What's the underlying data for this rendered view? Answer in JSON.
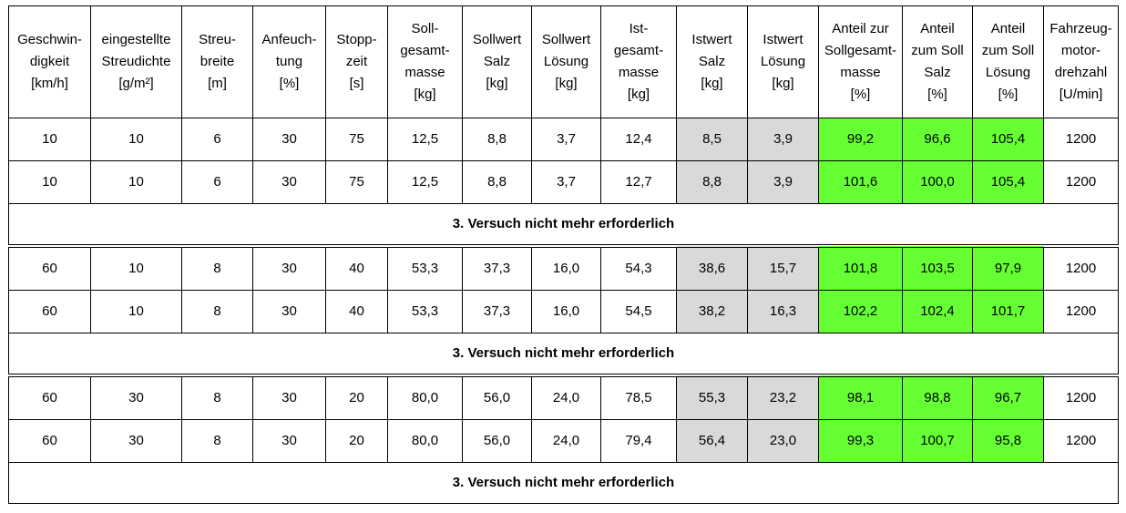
{
  "colors": {
    "istwert_bg": "#d9d9d9",
    "anteil_bg": "#66ff33",
    "grid": "#000000"
  },
  "headers": [
    "Geschwin-\ndigkeit\n[km/h]",
    "eingestellte\nStreudichte\n[g/m²]",
    "Streu-\nbreite\n[m]",
    "Anfeuch-\ntung\n[%]",
    "Stopp-\nzeit\n[s]",
    "Soll-\ngesamt-\nmasse\n[kg]",
    "Sollwert\nSalz\n[kg]",
    "Sollwert\nLösung\n[kg]",
    "Ist-\ngesamt-\nmasse\n[kg]",
    "Istwert\nSalz\n[kg]",
    "Istwert\nLösung\n[kg]",
    "Anteil zur\nSollgesamt-\nmasse\n[%]",
    "Anteil\nzum Soll\nSalz\n[%]",
    "Anteil\nzum Soll\nLösung\n[%]",
    "Fahrzeug-\nmotor-\ndrehzahl\n[U/min]"
  ],
  "groups": [
    {
      "rows": [
        [
          "10",
          "10",
          "6",
          "30",
          "75",
          "12,5",
          "8,8",
          "3,7",
          "12,4",
          "8,5",
          "3,9",
          "99,2",
          "96,6",
          "105,4",
          "1200"
        ],
        [
          "10",
          "10",
          "6",
          "30",
          "75",
          "12,5",
          "8,8",
          "3,7",
          "12,7",
          "8,8",
          "3,9",
          "101,6",
          "100,0",
          "105,4",
          "1200"
        ]
      ],
      "note": "3. Versuch nicht mehr erforderlich"
    },
    {
      "rows": [
        [
          "60",
          "10",
          "8",
          "30",
          "40",
          "53,3",
          "37,3",
          "16,0",
          "54,3",
          "38,6",
          "15,7",
          "101,8",
          "103,5",
          "97,9",
          "1200"
        ],
        [
          "60",
          "10",
          "8",
          "30",
          "40",
          "53,3",
          "37,3",
          "16,0",
          "54,5",
          "38,2",
          "16,3",
          "102,2",
          "102,4",
          "101,7",
          "1200"
        ]
      ],
      "note": "3. Versuch nicht mehr erforderlich"
    },
    {
      "rows": [
        [
          "60",
          "30",
          "8",
          "30",
          "20",
          "80,0",
          "56,0",
          "24,0",
          "78,5",
          "55,3",
          "23,2",
          "98,1",
          "98,8",
          "96,7",
          "1200"
        ],
        [
          "60",
          "30",
          "8",
          "30",
          "20",
          "80,0",
          "56,0",
          "24,0",
          "79,4",
          "56,4",
          "23,0",
          "99,3",
          "100,7",
          "95,8",
          "1200"
        ]
      ],
      "note": "3. Versuch nicht mehr erforderlich"
    }
  ]
}
